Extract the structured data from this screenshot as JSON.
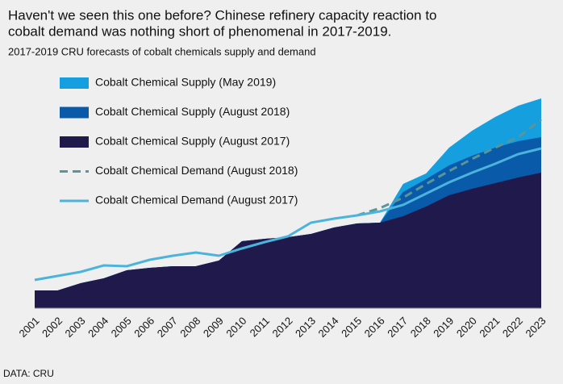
{
  "chart_data": {
    "type": "area",
    "title": [
      "Haven't we seen this one before? Chinese refinery capacity reaction to",
      "cobalt demand was nothing short of phenomenal in 2017-2019."
    ],
    "subtitle": "2017-2019 CRU forecasts of cobalt chemicals supply and demand",
    "source": "DATA: CRU",
    "categories": [
      "2001",
      "2002",
      "2003",
      "2004",
      "2005",
      "2006",
      "2007",
      "2008",
      "2009",
      "2010",
      "2011",
      "2012",
      "2013",
      "2014",
      "2015",
      "2016",
      "2017",
      "2018",
      "2019",
      "2020",
      "2021",
      "2022",
      "2023"
    ],
    "ylim": [
      0,
      300
    ],
    "series": [
      {
        "name": "Cobalt Chemical Supply (May 2019)",
        "kind": "area",
        "color": "#159fdf",
        "values": [
          22,
          22,
          31,
          37,
          47,
          50,
          52,
          52,
          59,
          83,
          86,
          88,
          92,
          100,
          105,
          106,
          154,
          167,
          199,
          220,
          237,
          251,
          260
        ]
      },
      {
        "name": "Cobalt Chemical Supply (August 2018)",
        "kind": "area",
        "color": "#0a5aaa",
        "values": [
          22,
          22,
          31,
          37,
          47,
          50,
          52,
          52,
          59,
          83,
          86,
          88,
          92,
          100,
          105,
          106,
          144,
          160,
          177,
          189,
          199,
          207,
          212
        ]
      },
      {
        "name": "Cobalt Chemical Supply (August 2017)",
        "kind": "area",
        "color": "#1f1a4b",
        "values": [
          22,
          22,
          31,
          37,
          47,
          50,
          52,
          52,
          59,
          83,
          86,
          88,
          92,
          100,
          105,
          106,
          114,
          126,
          140,
          148,
          155,
          162,
          168
        ]
      },
      {
        "name": "Cobalt Chemical Demand (August 2018)",
        "kind": "line",
        "dash": true,
        "color": "#5a9598",
        "values": [
          null,
          null,
          null,
          null,
          null,
          null,
          null,
          null,
          null,
          null,
          null,
          null,
          null,
          null,
          115,
          124,
          137,
          154,
          170,
          185,
          199,
          212,
          234
        ]
      },
      {
        "name": "Cobalt Chemical Demand (August 2017)",
        "kind": "line",
        "dash": false,
        "color": "#4cb3dc",
        "values": [
          35,
          40,
          45,
          53,
          52,
          60,
          65,
          69,
          65,
          74,
          82,
          89,
          106,
          111,
          115,
          120,
          128,
          142,
          156,
          168,
          179,
          191,
          198
        ]
      }
    ]
  }
}
